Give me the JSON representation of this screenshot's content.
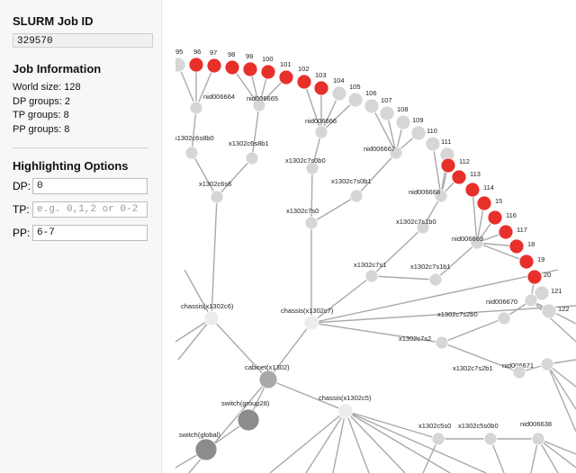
{
  "sidebar": {
    "job_title": "SLURM Job ID",
    "job_id": "329570",
    "info_title": "Job Information",
    "world_size": "World size: 128",
    "dp_groups": "DP groups: 2",
    "tp_groups": "TP groups: 8",
    "pp_groups": "PP groups: 8",
    "highlight_title": "Highlighting Options",
    "dp_label": "DP:",
    "dp_value": "0",
    "tp_label": "TP:",
    "tp_placeholder": "e.g. 0,1,2 or 0-2",
    "pp_label": "PP:",
    "pp_value": "6-7"
  },
  "graph": {
    "colors": {
      "highlight": "#e8302a",
      "node": "#d6d6d6",
      "chassis": "#ececec",
      "cabinet": "#a8a8a8",
      "switch": "#8c8c8c",
      "edge": "#a9a9a9"
    },
    "labels": [
      "95",
      "96",
      "97",
      "98",
      "99",
      "100",
      "101",
      "102",
      "103",
      "104",
      "105",
      "106",
      "107",
      "108",
      "109",
      "110",
      "111",
      "112",
      "113",
      "114",
      "15",
      "116",
      "117",
      "18",
      "19",
      "20",
      "121",
      "122",
      "nid006664",
      "nid006665",
      "nid006666",
      "nid006667",
      "nid006668",
      "nid006669",
      "nid006670",
      "nid006671",
      "nid006638",
      "x1302c6s8b0",
      "x1302c6s8b1",
      "x1302c6s6",
      "x1302c7s0b0",
      "x1302c7s0b1",
      "x1302c7s0",
      "x1302c7s1b0",
      "x1302c7s1",
      "x1302c7s1b1",
      "x1302c7s2b0",
      "x1302c7s2",
      "x1302c7s2b1",
      "x1302c5s0",
      "x1302c5s0b0",
      "chassis(x1302c6)",
      "chassis(x1302c7)",
      "chassis(x1302c5)",
      "cabinet(x1302)",
      "switch(group28)",
      "switch(global)"
    ]
  }
}
